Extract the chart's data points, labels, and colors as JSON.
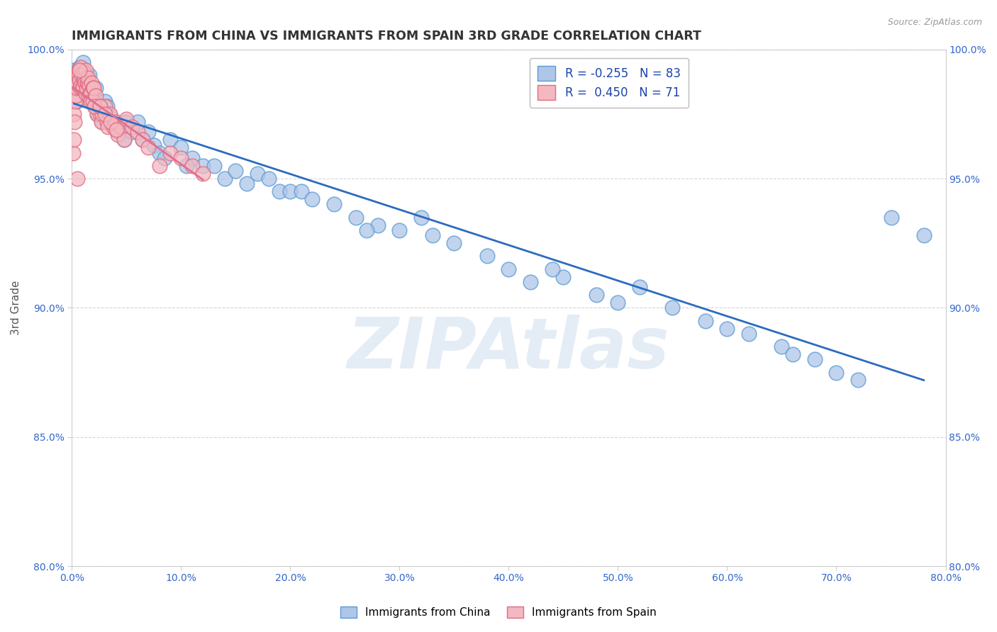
{
  "title": "IMMIGRANTS FROM CHINA VS IMMIGRANTS FROM SPAIN 3RD GRADE CORRELATION CHART",
  "source": "Source: ZipAtlas.com",
  "xlabel_blue": "Immigrants from China",
  "xlabel_pink": "Immigrants from Spain",
  "ylabel": "3rd Grade",
  "xlim": [
    0.0,
    80.0
  ],
  "ylim": [
    80.0,
    100.0
  ],
  "xticks": [
    0.0,
    10.0,
    20.0,
    30.0,
    40.0,
    50.0,
    60.0,
    70.0,
    80.0
  ],
  "yticks": [
    80.0,
    85.0,
    90.0,
    95.0,
    100.0
  ],
  "R_blue": -0.255,
  "N_blue": 83,
  "R_pink": 0.45,
  "N_pink": 71,
  "blue_color": "#aec6e8",
  "blue_edge": "#5b9bd5",
  "pink_color": "#f4b8c1",
  "pink_edge": "#e06b80",
  "blue_line_color": "#2b6bbf",
  "pink_line_color": "#e07090",
  "watermark": "ZIPAtlas",
  "background": "#ffffff",
  "grid_color": "#cccccc",
  "title_color": "#333333",
  "axis_label_color": "#555555",
  "tick_color": "#3366cc",
  "blue_scatter_x": [
    0.2,
    0.3,
    0.4,
    0.5,
    0.6,
    0.7,
    0.8,
    0.9,
    1.0,
    1.1,
    1.2,
    1.3,
    1.4,
    1.5,
    1.6,
    1.7,
    1.8,
    1.9,
    2.0,
    2.1,
    2.2,
    2.3,
    2.5,
    2.7,
    2.8,
    3.0,
    3.2,
    3.5,
    3.8,
    4.0,
    4.2,
    4.5,
    4.8,
    5.0,
    5.5,
    6.0,
    6.5,
    7.0,
    7.5,
    8.0,
    8.5,
    9.0,
    10.0,
    11.0,
    12.0,
    13.0,
    14.0,
    15.0,
    16.0,
    17.0,
    18.0,
    19.0,
    20.0,
    21.0,
    22.0,
    24.0,
    26.0,
    28.0,
    30.0,
    32.0,
    35.0,
    38.0,
    40.0,
    42.0,
    45.0,
    48.0,
    50.0,
    52.0,
    55.0,
    58.0,
    62.0,
    65.0,
    68.0,
    70.0,
    72.0,
    75.0,
    78.0,
    60.0,
    66.0,
    44.0,
    27.0,
    33.0,
    10.5
  ],
  "blue_scatter_y": [
    99.2,
    98.5,
    98.0,
    98.8,
    99.0,
    99.3,
    98.6,
    98.9,
    99.5,
    98.8,
    99.1,
    98.4,
    98.7,
    98.9,
    99.0,
    98.3,
    98.6,
    97.9,
    98.3,
    97.8,
    98.5,
    97.5,
    97.8,
    97.5,
    97.2,
    98.0,
    97.8,
    97.4,
    97.0,
    97.2,
    96.8,
    97.0,
    96.5,
    97.2,
    96.8,
    97.2,
    96.5,
    96.8,
    96.3,
    96.0,
    95.8,
    96.5,
    96.2,
    95.8,
    95.5,
    95.5,
    95.0,
    95.3,
    94.8,
    95.2,
    95.0,
    94.5,
    94.5,
    94.5,
    94.2,
    94.0,
    93.5,
    93.2,
    93.0,
    93.5,
    92.5,
    92.0,
    91.5,
    91.0,
    91.2,
    90.5,
    90.2,
    90.8,
    90.0,
    89.5,
    89.0,
    88.5,
    88.0,
    87.5,
    87.2,
    93.5,
    92.8,
    89.2,
    88.2,
    91.5,
    93.0,
    92.8,
    95.5
  ],
  "pink_scatter_x": [
    0.1,
    0.15,
    0.2,
    0.25,
    0.3,
    0.35,
    0.4,
    0.45,
    0.5,
    0.55,
    0.6,
    0.65,
    0.7,
    0.75,
    0.8,
    0.85,
    0.9,
    0.95,
    1.0,
    1.05,
    1.1,
    1.15,
    1.2,
    1.25,
    1.3,
    1.35,
    1.4,
    1.45,
    1.5,
    1.55,
    1.6,
    1.65,
    1.7,
    1.75,
    1.8,
    1.9,
    1.95,
    2.0,
    2.1,
    2.2,
    2.3,
    2.5,
    2.6,
    2.7,
    2.8,
    3.0,
    3.2,
    3.3,
    3.5,
    3.8,
    4.0,
    4.2,
    4.5,
    4.8,
    5.0,
    5.5,
    6.0,
    6.5,
    7.0,
    8.0,
    9.0,
    10.0,
    11.0,
    12.0,
    2.05,
    2.55,
    3.05,
    3.55,
    4.05,
    0.5,
    0.7
  ],
  "pink_scatter_y": [
    96.0,
    96.5,
    97.5,
    97.2,
    98.0,
    98.2,
    98.5,
    98.7,
    99.0,
    99.1,
    99.2,
    99.0,
    98.8,
    98.5,
    99.3,
    98.6,
    99.0,
    98.5,
    98.5,
    98.8,
    99.1,
    98.9,
    98.7,
    98.3,
    99.2,
    98.5,
    98.7,
    98.7,
    98.9,
    98.2,
    98.6,
    98.3,
    98.3,
    98.0,
    98.7,
    98.5,
    98.0,
    98.5,
    97.8,
    98.2,
    97.5,
    97.8,
    97.5,
    97.2,
    97.5,
    97.8,
    97.2,
    97.0,
    97.5,
    97.0,
    97.2,
    96.7,
    97.0,
    96.5,
    97.3,
    97.0,
    96.8,
    96.5,
    96.2,
    95.5,
    96.0,
    95.8,
    95.5,
    95.2,
    97.8,
    97.8,
    97.5,
    97.2,
    96.9,
    95.0,
    99.2
  ]
}
